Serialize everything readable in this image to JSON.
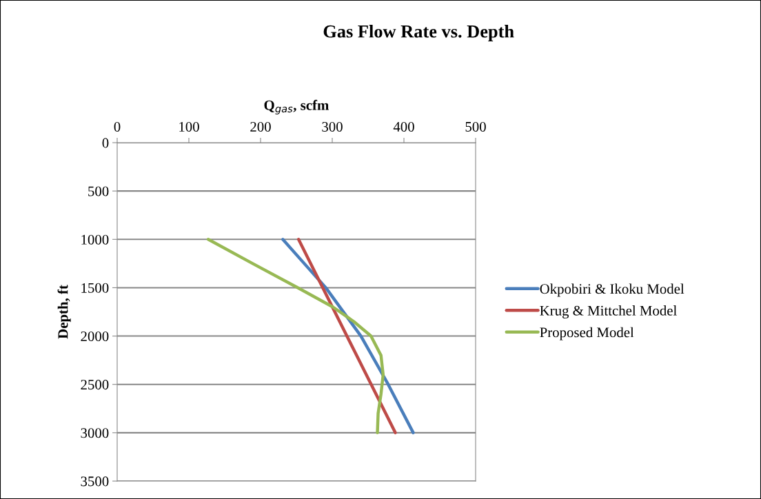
{
  "chart_data": {
    "type": "line",
    "title": "Gas Flow Rate vs. Depth",
    "xlabel": "Q$_{gas}$, scfm",
    "ylabel": "Depth, ft",
    "xlim": [
      0,
      500
    ],
    "xticks": [
      0,
      100,
      200,
      300,
      400,
      500
    ],
    "ylim": [
      3500,
      0
    ],
    "yticks": [
      0,
      500,
      1000,
      1500,
      2000,
      2500,
      3000,
      3500
    ],
    "grid": "y",
    "legend": "right",
    "marker": "none",
    "line_style": "solid",
    "series": [
      {
        "name": "Okpobiri & Ikoku Model",
        "color": "#4a7ebb",
        "x": [
          231,
          261,
          291,
          340,
          378,
          413
        ],
        "values": [
          1000,
          1250,
          1500,
          2000,
          2500,
          3000
        ]
      },
      {
        "name": "Krug & Mittchel Model",
        "color": "#be4b48",
        "x": [
          253,
          388
        ],
        "values": [
          1000,
          3000
        ]
      },
      {
        "name": "Proposed Model",
        "color": "#98b954",
        "x": [
          127,
          189,
          252,
          301,
          330,
          354,
          368,
          371,
          368,
          364,
          363
        ],
        "values": [
          1000,
          1250,
          1500,
          1700,
          1850,
          2000,
          2200,
          2400,
          2600,
          2800,
          3000
        ]
      }
    ]
  }
}
